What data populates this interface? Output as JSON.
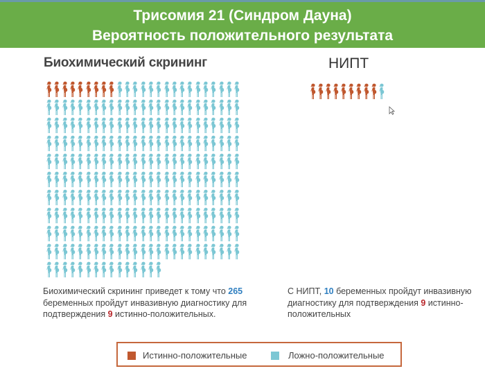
{
  "header": {
    "line1": "Трисомия 21 (Синдром Дауна)",
    "line2": "Вероятность положительного результата"
  },
  "colors": {
    "header": "#6aad48",
    "true_positive": "#c0582f",
    "false_positive": "#7cc7d4",
    "border": "#c5673c",
    "highlight_blue": "#2f7fc0",
    "highlight_red": "#b8262a"
  },
  "icon": "pregnant-woman-icon",
  "panels": [
    {
      "title": "Биохимический скрининг",
      "total": 265,
      "true_positive": 9,
      "columns": 25,
      "text": {
        "p1": "Биохимический скрининг приведет к тому что ",
        "n1": "265",
        "p2": " беременных пройдут инвазивную диагностику для подтверждения ",
        "n2": "9",
        "p3": " истинно-положительных."
      }
    },
    {
      "title": "НИПТ",
      "total": 10,
      "true_positive": 9,
      "columns": 10,
      "text": {
        "p1": "С НИПТ, ",
        "n1": "10",
        "p2": " беременных пройдут инвазивную диагностику для подтверждения ",
        "n2": "9",
        "p3": " истинно-положительных"
      }
    }
  ],
  "legend": {
    "true_positive": "Истинно-положительные",
    "false_positive": "Ложно-положительные"
  }
}
